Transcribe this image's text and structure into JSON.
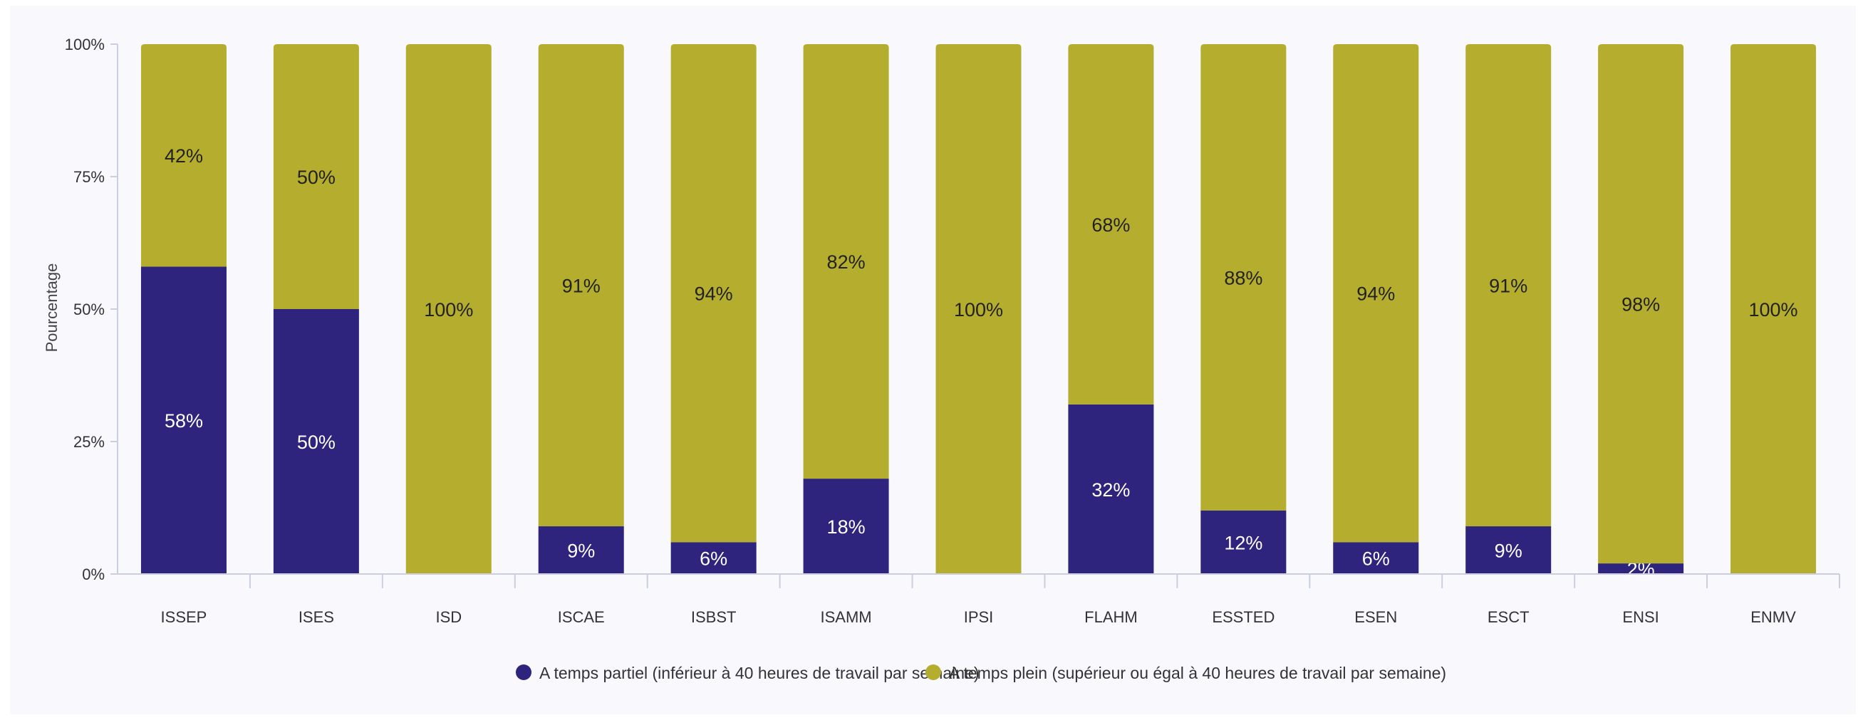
{
  "chart_data": {
    "type": "bar",
    "stacked": true,
    "categories": [
      "ISSEP",
      "ISES",
      "ISD",
      "ISCAE",
      "ISBST",
      "ISAMM",
      "IPSI",
      "FLAHM",
      "ESSTED",
      "ESEN",
      "ESCT",
      "ENSI",
      "ENMV"
    ],
    "series": [
      {
        "name": "A temps partiel (inférieur à 40 heures de travail par semaine)",
        "color": "#2e237d",
        "label_color": "#ffffff",
        "values": [
          58,
          50,
          0,
          9,
          6,
          18,
          0,
          32,
          12,
          6,
          9,
          2,
          0
        ]
      },
      {
        "name": "A temps plein (supérieur ou égal à 40 heures de travail par semaine)",
        "color": "#b5ad2e",
        "label_color": "#222222",
        "values": [
          42,
          50,
          100,
          91,
          94,
          82,
          100,
          68,
          88,
          94,
          91,
          98,
          100
        ]
      }
    ],
    "ylabel": "Pourcentage",
    "xlabel": "",
    "ylim": [
      0,
      100
    ],
    "yticks": [
      "0%",
      "25%",
      "50%",
      "75%",
      "100%"
    ],
    "value_suffix": "%",
    "grid": false,
    "legend_position": "bottom"
  }
}
